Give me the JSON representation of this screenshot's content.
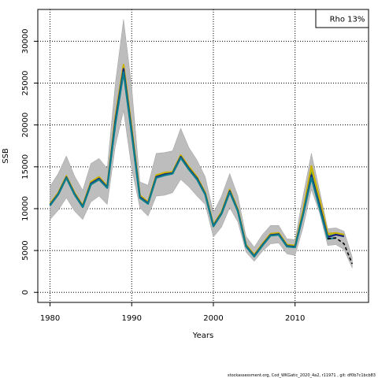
{
  "chart_data": {
    "type": "line",
    "xlabel": "Years",
    "ylabel": "SSB",
    "xlim": [
      1978.5,
      2019.0
    ],
    "ylim": [
      -1200,
      33800
    ],
    "x_ticks": [
      1980,
      1990,
      2000,
      2010
    ],
    "y_ticks": [
      0,
      5000,
      10000,
      15000,
      20000,
      25000,
      30000
    ],
    "grid": "dotted",
    "legend": {
      "text": "Rho 13%",
      "position": "top-right"
    },
    "confidence_band": {
      "x": [
        1980,
        1981,
        1982,
        1983,
        1984,
        1985,
        1986,
        1987,
        1988,
        1989,
        1990,
        1991,
        1992,
        1993,
        1994,
        1995,
        1996,
        1997,
        1998,
        1999,
        2000,
        2001,
        2002,
        2003,
        2004,
        2005,
        2006,
        2007,
        2008,
        2009,
        2010,
        2011,
        2012,
        2013,
        2014,
        2015,
        2016,
        2017
      ],
      "upper": [
        12700,
        14200,
        16300,
        13900,
        12200,
        15400,
        16000,
        14800,
        25000,
        32600,
        24500,
        13200,
        12800,
        16600,
        16700,
        16900,
        19600,
        17300,
        15800,
        13800,
        9500,
        11500,
        14200,
        11500,
        6700,
        5400,
        6900,
        8000,
        8000,
        6400,
        6300,
        11600,
        16600,
        12200,
        7600,
        7700,
        7300,
        4200
      ],
      "lower": [
        8700,
        9800,
        11300,
        9700,
        8700,
        10800,
        11500,
        10500,
        17500,
        21700,
        14800,
        10100,
        9100,
        11500,
        11600,
        11900,
        13500,
        12600,
        11500,
        10500,
        6600,
        7800,
        10100,
        8400,
        4800,
        3700,
        4900,
        5800,
        5900,
        4600,
        4400,
        7800,
        12300,
        9500,
        5600,
        5700,
        5100,
        2900
      ]
    },
    "series": [
      {
        "color": "#2e7d32",
        "x": [
          1980,
          1981,
          1982,
          1983,
          1984,
          1985,
          1986,
          1987,
          1988,
          1989,
          1990,
          1991,
          1992,
          1993,
          1994,
          1995,
          1996,
          1997,
          1998,
          1999,
          2000,
          2001,
          2002,
          2003,
          2004,
          2005,
          2006,
          2007,
          2008,
          2009,
          2010,
          2011,
          2012,
          2013,
          2014,
          2015,
          2016
        ],
        "values": [
          10400,
          11700,
          13700,
          11700,
          10200,
          12900,
          13500,
          12500,
          20200,
          26400,
          19000,
          11300,
          10600,
          13700,
          14000,
          14200,
          16100,
          14700,
          13500,
          11700,
          7900,
          9400,
          12000,
          9700,
          5500,
          4300,
          5600,
          6800,
          6900,
          5500,
          5400,
          9500,
          14300,
          10600,
          6700,
          6900,
          6700
        ]
      },
      {
        "color": "#8bc34a",
        "x": [
          1980,
          1981,
          1982,
          1983,
          1984,
          1985,
          1986,
          1987,
          1988,
          1989,
          1990,
          1991,
          1992,
          1993,
          1994,
          1995,
          1996,
          1997,
          1998,
          1999,
          2000,
          2001,
          2002,
          2003,
          2004,
          2005,
          2006,
          2007,
          2008,
          2009,
          2010,
          2011,
          2012,
          2013,
          2014,
          2015,
          2016
        ],
        "values": [
          10500,
          11800,
          13800,
          11800,
          10300,
          13100,
          13700,
          12600,
          20800,
          27000,
          19500,
          11500,
          10700,
          13900,
          14200,
          14300,
          16300,
          14900,
          13700,
          11800,
          8000,
          9500,
          12200,
          9800,
          5600,
          4400,
          5700,
          6900,
          7000,
          5600,
          5500,
          9700,
          14900,
          11000,
          6900,
          7000,
          6800
        ]
      },
      {
        "color": "#c8b400",
        "x": [
          1980,
          1981,
          1982,
          1983,
          1984,
          1985,
          1986,
          1987,
          1988,
          1989,
          1990,
          1991,
          1992,
          1993,
          1994,
          1995,
          1996,
          1997,
          1998,
          1999,
          2000,
          2001,
          2002,
          2003,
          2004,
          2005,
          2006,
          2007,
          2008,
          2009,
          2010,
          2011,
          2012,
          2013,
          2014,
          2015,
          2016
        ],
        "values": [
          10600,
          11900,
          13900,
          11900,
          10400,
          13200,
          13800,
          12700,
          21000,
          27200,
          19700,
          11600,
          10800,
          14000,
          14300,
          14400,
          16400,
          15000,
          13800,
          11900,
          8100,
          9600,
          12300,
          9900,
          5700,
          4500,
          5800,
          7000,
          7100,
          5700,
          5600,
          9800,
          15100,
          11200,
          7000,
          7100,
          6900
        ]
      },
      {
        "color": "#1a237e",
        "x": [
          1980,
          1981,
          1982,
          1983,
          1984,
          1985,
          1986,
          1987,
          1988,
          1989,
          1990,
          1991,
          1992,
          1993,
          1994,
          1995,
          1996,
          1997,
          1998,
          1999,
          2000,
          2001,
          2002,
          2003,
          2004,
          2005,
          2006,
          2007,
          2008,
          2009,
          2010,
          2011,
          2012,
          2013,
          2014,
          2015,
          2016
        ],
        "values": [
          10450,
          11750,
          13750,
          11750,
          10250,
          13000,
          13600,
          12550,
          20500,
          26700,
          19200,
          11400,
          10650,
          13800,
          14100,
          14250,
          16200,
          14800,
          13600,
          11750,
          7950,
          9450,
          12100,
          9750,
          5550,
          4350,
          5650,
          6850,
          6950,
          5550,
          5450,
          9400,
          14000,
          10400,
          6600,
          6900,
          6700
        ]
      },
      {
        "color": "#0a7e8c",
        "x": [
          1980,
          1981,
          1982,
          1983,
          1984,
          1985,
          1986,
          1987,
          1988,
          1989,
          1990,
          1991,
          1992,
          1993,
          1994,
          1995,
          1996,
          1997,
          1998,
          1999,
          2000,
          2001,
          2002,
          2003,
          2004,
          2005,
          2006,
          2007,
          2008,
          2009,
          2010,
          2011,
          2012,
          2013,
          2014,
          2015
        ],
        "values": [
          10380,
          11680,
          13680,
          11680,
          10180,
          12880,
          13480,
          12480,
          20100,
          26300,
          18900,
          11280,
          10580,
          13680,
          13980,
          14180,
          16080,
          14680,
          13480,
          11680,
          7880,
          9380,
          11980,
          9680,
          5480,
          4280,
          5580,
          6780,
          6880,
          5480,
          5380,
          9300,
          13700,
          10100,
          6400,
          6500
        ]
      },
      {
        "color": "#000000",
        "dashed": true,
        "x": [
          2014,
          2015,
          2016,
          2017
        ],
        "values": [
          6400,
          6500,
          5800,
          3400
        ]
      }
    ]
  },
  "footer": "stockassessment.org, Cod_WKGatic_2020_4a2, r11971 , git: df0b7c1bcb83"
}
